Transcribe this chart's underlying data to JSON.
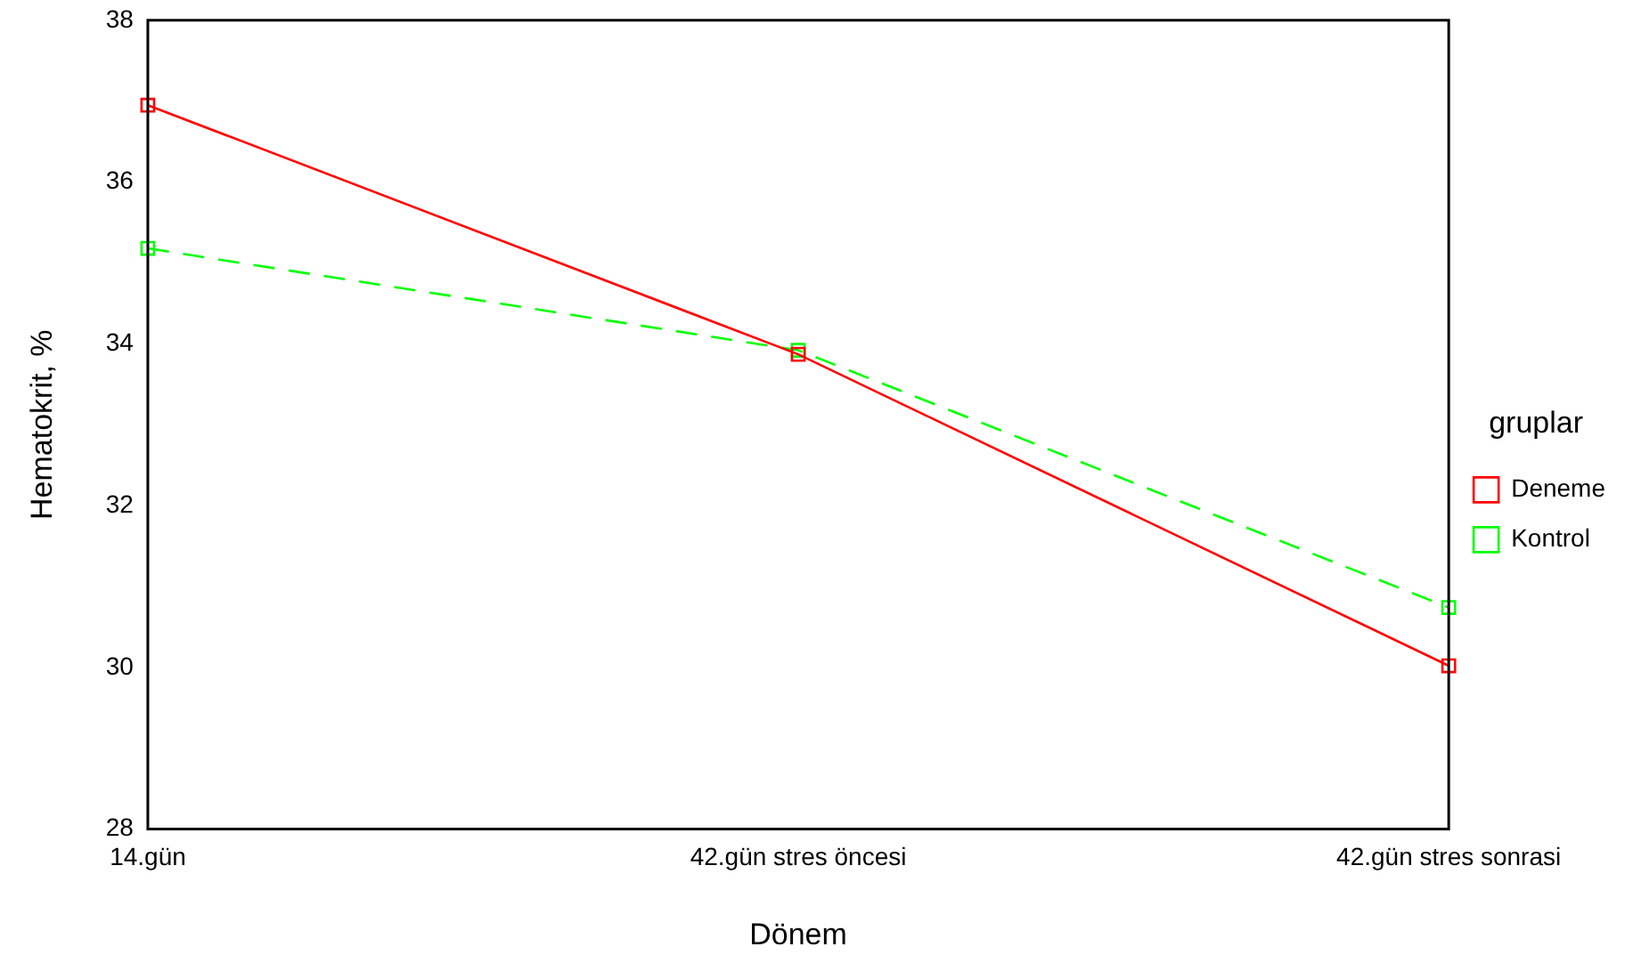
{
  "chart_data": {
    "type": "line",
    "xlabel": "Dönem",
    "ylabel": "Hematokrit, %",
    "legend_title": "gruplar",
    "categories": [
      "14.gün",
      "42.gün stres öncesi",
      "42.gün stres sonrasi"
    ],
    "series": [
      {
        "name": "Deneme",
        "color": "#ff0000",
        "values": [
          36.95,
          33.87,
          30.02
        ],
        "line_style": "solid"
      },
      {
        "name": "Kontrol",
        "color": "#00ff00",
        "values": [
          35.18,
          33.92,
          30.74
        ],
        "line_style": "dashed"
      }
    ],
    "ylim": [
      28,
      38
    ],
    "yticks": [
      28,
      30,
      32,
      34,
      36,
      38
    ],
    "grid": false,
    "legend": "right",
    "marker": "square"
  }
}
